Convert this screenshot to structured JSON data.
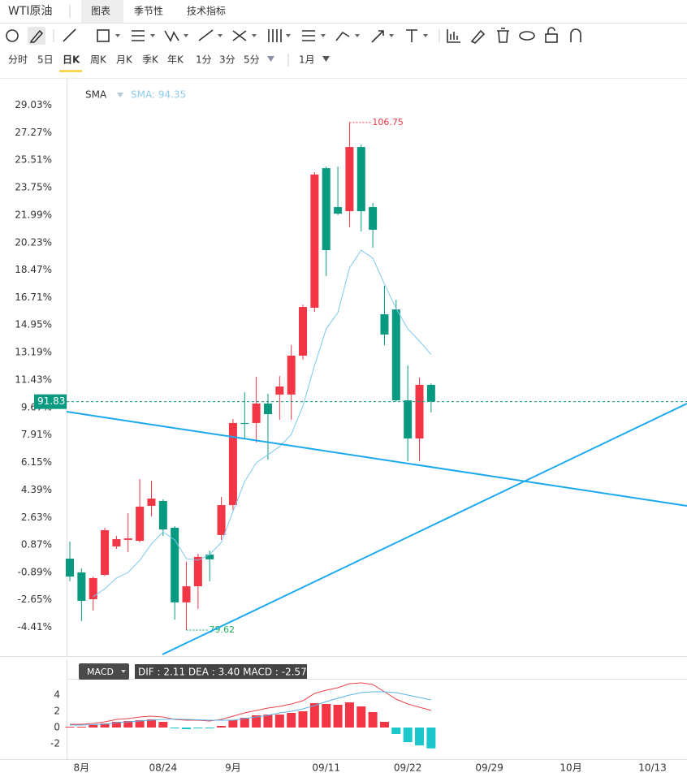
{
  "header": {
    "title": "WTI原油",
    "tabs": [
      "图表",
      "季节性",
      "技术指标"
    ]
  },
  "periods": [
    "分时",
    "5日",
    "日K",
    "周K",
    "月K",
    "季K",
    "年K",
    "1分",
    "3分",
    "5分"
  ],
  "range": "1月",
  "chart_data": [
    {
      "type": "candlestick",
      "indicator": "SMA",
      "legend_text": "SMA: 94.35",
      "up_color": "#f23645",
      "down_color": "#089981",
      "x": [
        0,
        1,
        2,
        3,
        4,
        5,
        6,
        7,
        8,
        9,
        10,
        11,
        12,
        13,
        14,
        15,
        16,
        17,
        18,
        19,
        20,
        21,
        22,
        23,
        24,
        25,
        26,
        27,
        28,
        29,
        30,
        31
      ],
      "open": [
        83.44,
        82.7,
        81.27,
        82.57,
        84.09,
        84.44,
        84.39,
        86.26,
        86.52,
        85.09,
        81.1,
        81.96,
        83.66,
        84.7,
        86.3,
        90.69,
        90.69,
        91.73,
        92.21,
        92.21,
        94.29,
        96.85,
        104.31,
        102.23,
        102.01,
        105.44,
        102.23,
        96.5,
        96.76,
        91.9,
        89.86,
        92.73
      ],
      "high": [
        84.35,
        82.92,
        82.48,
        85.09,
        84.65,
        85.87,
        87.69,
        87.61,
        86.61,
        85.18,
        83.27,
        83.7,
        83.87,
        86.74,
        90.9,
        92.34,
        93.16,
        92.25,
        93.2,
        94.85,
        97.02,
        104.1,
        104.4,
        104.4,
        106.75,
        105.57,
        102.45,
        98.02,
        97.28,
        93.77,
        93.12,
        92.81
      ],
      "low": [
        82.22,
        80.1,
        80.66,
        82.5,
        83.96,
        83.79,
        84.31,
        85.7,
        84.65,
        80.18,
        79.62,
        80.75,
        82.22,
        84.44,
        86.04,
        89.86,
        89.65,
        88.73,
        90.86,
        90.86,
        94.07,
        96.63,
        98.54,
        101.8,
        101.15,
        100.93,
        100.06,
        94.85,
        91.82,
        88.65,
        88.65,
        91.25
      ],
      "close": [
        82.48,
        81.18,
        82.4,
        84.96,
        84.48,
        84.52,
        86.22,
        86.65,
        85.0,
        81.1,
        81.96,
        83.53,
        83.4,
        86.3,
        90.69,
        90.64,
        91.73,
        91.16,
        92.64,
        94.29,
        96.89,
        103.97,
        99.93,
        101.88,
        105.44,
        102.01,
        101.02,
        95.42,
        91.9,
        89.86,
        92.73,
        91.83
      ],
      "series": [
        {
          "name": "SMA",
          "color": "#7ec8ee",
          "values": [
            null,
            null,
            81.4,
            81.83,
            82.4,
            82.7,
            83.35,
            84.22,
            84.87,
            84.44,
            83.44,
            83.35,
            83.66,
            84.31,
            85.96,
            87.56,
            88.56,
            88.99,
            89.43,
            90.08,
            91.6,
            93.77,
            95.72,
            96.59,
            98.98,
            99.93,
            99.5,
            98.11,
            96.81,
            95.72,
            95.07,
            94.35
          ]
        }
      ],
      "xlim": [
        -0.28,
        52.96
      ],
      "ylim": [
        78.23,
        109.09
      ],
      "yticks": [
        {
          "value": 107.68,
          "label": "29.03%"
        },
        {
          "value": 106.21,
          "label": "27.27%"
        },
        {
          "value": 104.74,
          "label": "25.51%"
        },
        {
          "value": 103.27,
          "label": "23.75%"
        },
        {
          "value": 101.8,
          "label": "21.99%"
        },
        {
          "value": 100.33,
          "label": "20.23%"
        },
        {
          "value": 98.86,
          "label": "18.47%"
        },
        {
          "value": 97.39,
          "label": "16.71%"
        },
        {
          "value": 95.93,
          "label": "14.95%"
        },
        {
          "value": 94.46,
          "label": "13.19%"
        },
        {
          "value": 92.99,
          "label": "11.43%"
        },
        {
          "value": 91.52,
          "label": "9.67%"
        },
        {
          "value": 90.05,
          "label": "7.91%"
        },
        {
          "value": 88.58,
          "label": "6.15%"
        },
        {
          "value": 87.11,
          "label": "4.39%"
        },
        {
          "value": 85.64,
          "label": "2.63%"
        },
        {
          "value": 84.18,
          "label": "0.87%"
        },
        {
          "value": 82.71,
          "label": "-0.89%"
        },
        {
          "value": 81.24,
          "label": "-2.65%"
        },
        {
          "value": 79.77,
          "label": "-4.41%"
        }
      ],
      "grid": false
    },
    {
      "type": "macd",
      "indicator": "MACD",
      "legend_text": "DIF : 2.11  DEA : 3.40  MACD : -2.57",
      "x": [
        0,
        1,
        2,
        3,
        4,
        5,
        6,
        7,
        8,
        9,
        10,
        11,
        12,
        13,
        14,
        15,
        16,
        17,
        18,
        19,
        20,
        21,
        22,
        23,
        24,
        25,
        26,
        27,
        28,
        29,
        30,
        31
      ],
      "series": [
        {
          "name": "MACD",
          "kind": "bar",
          "color": "#f23645",
          "negative_color": "#1cc7cc",
          "values": [
            0.1,
            0.1,
            0.3,
            0.5,
            0.7,
            0.8,
            0.9,
            1.0,
            0.7,
            -0.1,
            -0.2,
            -0.1,
            -0.1,
            0.2,
            0.9,
            1.2,
            1.5,
            1.6,
            1.6,
            1.8,
            2.0,
            3.0,
            2.9,
            2.8,
            3.1,
            2.6,
            1.9,
            0.7,
            -0.8,
            -1.8,
            -2.2,
            -2.57
          ]
        },
        {
          "name": "DIF",
          "kind": "line",
          "color": "#e8434b",
          "values": [
            0.4,
            0.4,
            0.5,
            0.7,
            1.0,
            1.1,
            1.3,
            1.4,
            1.3,
            1.0,
            0.9,
            0.9,
            0.8,
            1.0,
            1.4,
            1.8,
            2.1,
            2.4,
            2.6,
            2.9,
            3.3,
            4.2,
            4.6,
            4.9,
            5.4,
            5.5,
            5.3,
            4.4,
            3.5,
            2.9,
            2.5,
            2.11
          ]
        },
        {
          "name": "DEA",
          "kind": "line",
          "color": "#5ab4ea",
          "values": [
            0.3,
            0.3,
            0.35,
            0.4,
            0.6,
            0.7,
            0.8,
            0.9,
            1.0,
            1.05,
            1.0,
            0.95,
            0.9,
            0.9,
            0.9,
            1.1,
            1.3,
            1.5,
            1.8,
            2.0,
            2.3,
            2.7,
            3.2,
            3.6,
            4.0,
            4.3,
            4.4,
            4.4,
            4.3,
            4.0,
            3.7,
            3.4
          ]
        }
      ],
      "xlim": [
        -0.28,
        52.96
      ],
      "ylim": [
        -3.9,
        6.0
      ],
      "yticks": [
        -2,
        0,
        2,
        4
      ],
      "xticks": [
        {
          "value": 1,
          "label": "8月"
        },
        {
          "value": 8,
          "label": "08/24"
        },
        {
          "value": 14,
          "label": "9月"
        },
        {
          "value": 22,
          "label": "09/11"
        },
        {
          "value": 29,
          "label": "09/22"
        },
        {
          "value": 36,
          "label": "09/29"
        },
        {
          "value": 43,
          "label": "10月"
        },
        {
          "value": 50,
          "label": "10/13"
        }
      ]
    }
  ]
}
